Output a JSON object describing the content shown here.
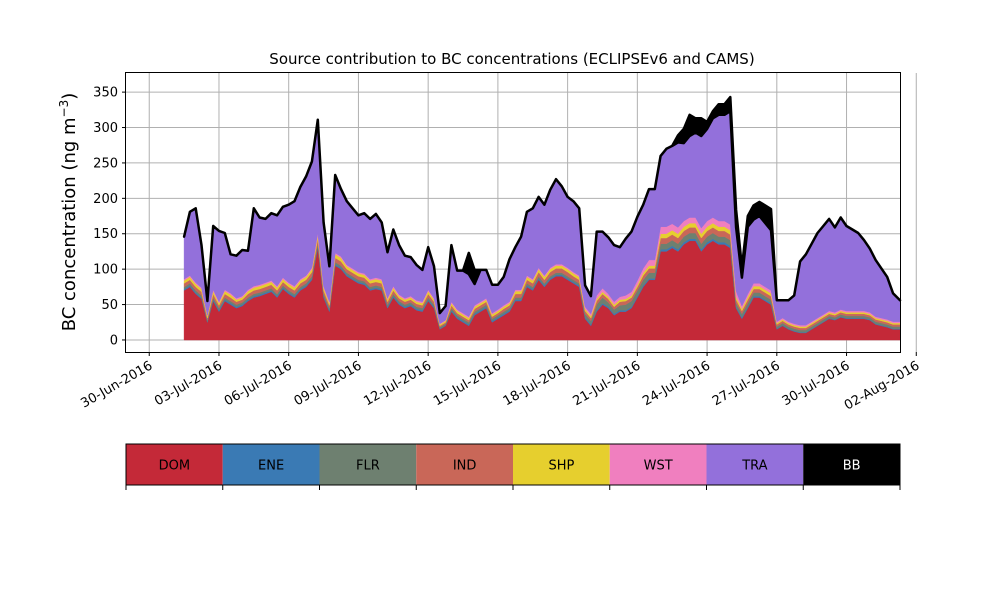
{
  "chart_data": {
    "type": "area",
    "title": "Source contribution to BC concentrations (ECLIPSEv6 and CAMS)",
    "ylabel": "BC concentration (ng m",
    "ylabel_sup": "−3",
    "ylabel_close": ")",
    "xlabel": "",
    "ylim": [
      -17,
      377
    ],
    "xlim": [
      -1,
      32.3
    ],
    "grid": true,
    "legend_placement": "below",
    "yticks": [
      0,
      50,
      100,
      150,
      200,
      250,
      300,
      350
    ],
    "xticks": [
      {
        "x": 0,
        "label": "30-Jun-2016"
      },
      {
        "x": 3,
        "label": "03-Jul-2016"
      },
      {
        "x": 6,
        "label": "06-Jul-2016"
      },
      {
        "x": 9,
        "label": "09-Jul-2016"
      },
      {
        "x": 12,
        "label": "12-Jul-2016"
      },
      {
        "x": 15,
        "label": "15-Jul-2016"
      },
      {
        "x": 18,
        "label": "18-Jul-2016"
      },
      {
        "x": 21,
        "label": "21-Jul-2016"
      },
      {
        "x": 24,
        "label": "24-Jul-2016"
      },
      {
        "x": 27,
        "label": "27-Jul-2016"
      },
      {
        "x": 30,
        "label": "30-Jul-2016"
      },
      {
        "x": 33,
        "label": "02-Aug-2016"
      }
    ],
    "x_unit": "days since 30-Jun-2016",
    "x": [
      1.5,
      1.75,
      2,
      2.25,
      2.5,
      2.75,
      3,
      3.25,
      3.5,
      3.75,
      4,
      4.25,
      4.5,
      4.75,
      5,
      5.25,
      5.5,
      5.75,
      6,
      6.25,
      6.5,
      6.75,
      7,
      7.25,
      7.5,
      7.75,
      8,
      8.25,
      8.5,
      8.75,
      9,
      9.25,
      9.5,
      9.75,
      10,
      10.25,
      10.5,
      10.75,
      11,
      11.25,
      11.5,
      11.75,
      12,
      12.25,
      12.5,
      12.75,
      13,
      13.25,
      13.5,
      13.75,
      14,
      14.25,
      14.5,
      14.75,
      15,
      15.25,
      15.5,
      15.75,
      16,
      16.25,
      16.5,
      16.75,
      17,
      17.25,
      17.5,
      17.75,
      18,
      18.25,
      18.5,
      18.75,
      19,
      19.25,
      19.5,
      19.75,
      20,
      20.25,
      20.5,
      20.75,
      21,
      21.25,
      21.5,
      21.75,
      22,
      22.25,
      22.5,
      22.75,
      23,
      23.25,
      23.5,
      23.75,
      24,
      24.25,
      24.5,
      24.75,
      25,
      25.25,
      25.5,
      25.75,
      26,
      26.25,
      26.5,
      26.75,
      27,
      27.25,
      27.5,
      27.75,
      28,
      28.25,
      28.5,
      28.75,
      29,
      29.25,
      29.5,
      29.75,
      30,
      30.25,
      30.5,
      30.75,
      31,
      31.25,
      31.5,
      31.75,
      32,
      32.3
    ],
    "series": [
      {
        "name": "DOM",
        "color": "#c42938",
        "values": [
          70,
          75,
          65,
          58,
          25,
          55,
          40,
          55,
          50,
          45,
          48,
          55,
          60,
          62,
          65,
          68,
          60,
          72,
          65,
          60,
          70,
          75,
          85,
          130,
          60,
          40,
          105,
          100,
          90,
          85,
          80,
          78,
          70,
          72,
          70,
          45,
          60,
          50,
          45,
          48,
          42,
          40,
          55,
          45,
          15,
          20,
          40,
          30,
          25,
          20,
          35,
          40,
          45,
          25,
          30,
          35,
          40,
          55,
          55,
          75,
          70,
          85,
          75,
          85,
          90,
          90,
          85,
          80,
          75,
          30,
          20,
          40,
          50,
          45,
          35,
          40,
          40,
          45,
          60,
          75,
          85,
          85,
          125,
          125,
          130,
          125,
          135,
          140,
          140,
          125,
          135,
          140,
          135,
          135,
          130,
          45,
          30,
          45,
          60,
          60,
          55,
          50,
          15,
          20,
          15,
          12,
          10,
          10,
          15,
          20,
          25,
          30,
          28,
          32,
          30,
          30,
          30,
          30,
          28,
          22,
          20,
          18,
          15,
          15
        ]
      },
      {
        "name": "ENE",
        "color": "#3a7ab4",
        "values": [
          2,
          2,
          2,
          2,
          1,
          2,
          2,
          2,
          2,
          2,
          2,
          2,
          2,
          2,
          2,
          2,
          2,
          2,
          2,
          2,
          2,
          2,
          2,
          3,
          2,
          2,
          2,
          2,
          2,
          2,
          2,
          2,
          2,
          2,
          2,
          2,
          2,
          2,
          2,
          2,
          2,
          2,
          2,
          2,
          1,
          1,
          2,
          2,
          2,
          2,
          2,
          2,
          2,
          2,
          2,
          2,
          2,
          2,
          2,
          2,
          2,
          2,
          2,
          2,
          2,
          2,
          2,
          2,
          2,
          2,
          2,
          2,
          2,
          2,
          2,
          2,
          2,
          2,
          2,
          2,
          2,
          2,
          3,
          3,
          3,
          3,
          3,
          3,
          3,
          3,
          3,
          3,
          3,
          3,
          3,
          2,
          2,
          2,
          2,
          2,
          2,
          2,
          1,
          1,
          1,
          1,
          1,
          1,
          1,
          1,
          1,
          1,
          1,
          1,
          1,
          1,
          1,
          1,
          1,
          1,
          1,
          1,
          1,
          1
        ]
      },
      {
        "name": "FLR",
        "color": "#6e8070",
        "values": [
          3,
          3,
          3,
          3,
          2,
          3,
          3,
          3,
          3,
          3,
          3,
          3,
          3,
          3,
          3,
          3,
          3,
          3,
          3,
          3,
          3,
          3,
          3,
          4,
          3,
          3,
          3,
          3,
          3,
          3,
          3,
          3,
          3,
          3,
          3,
          3,
          3,
          3,
          3,
          3,
          3,
          3,
          3,
          3,
          2,
          2,
          3,
          3,
          3,
          3,
          3,
          3,
          3,
          3,
          3,
          3,
          3,
          3,
          3,
          3,
          3,
          3,
          3,
          3,
          3,
          3,
          3,
          3,
          3,
          5,
          5,
          8,
          8,
          6,
          6,
          7,
          8,
          8,
          8,
          8,
          8,
          8,
          8,
          8,
          8,
          8,
          8,
          8,
          8,
          8,
          8,
          8,
          8,
          8,
          8,
          5,
          5,
          5,
          5,
          5,
          5,
          5,
          3,
          3,
          3,
          3,
          3,
          3,
          3,
          3,
          3,
          3,
          3,
          3,
          3,
          3,
          3,
          3,
          3,
          3,
          3,
          3,
          3,
          3
        ]
      },
      {
        "name": "IND",
        "color": "#c96758",
        "values": [
          5,
          5,
          5,
          5,
          3,
          5,
          4,
          5,
          5,
          4,
          4,
          5,
          5,
          5,
          5,
          5,
          5,
          5,
          5,
          5,
          5,
          5,
          6,
          6,
          5,
          4,
          6,
          6,
          5,
          5,
          5,
          5,
          5,
          5,
          5,
          4,
          5,
          4,
          4,
          4,
          4,
          4,
          5,
          4,
          2,
          2,
          4,
          3,
          3,
          3,
          4,
          4,
          4,
          3,
          3,
          4,
          4,
          5,
          5,
          5,
          5,
          6,
          5,
          6,
          6,
          6,
          6,
          5,
          5,
          4,
          4,
          5,
          5,
          5,
          4,
          5,
          5,
          5,
          5,
          6,
          6,
          6,
          8,
          8,
          8,
          8,
          8,
          8,
          8,
          8,
          8,
          8,
          8,
          8,
          8,
          5,
          4,
          5,
          5,
          5,
          5,
          5,
          3,
          3,
          3,
          3,
          3,
          3,
          3,
          3,
          3,
          3,
          3,
          3,
          3,
          3,
          3,
          3,
          3,
          3,
          3,
          3,
          3,
          3
        ]
      },
      {
        "name": "SHP",
        "color": "#e6cf2e",
        "values": [
          4,
          4,
          4,
          4,
          3,
          4,
          3,
          4,
          4,
          3,
          3,
          4,
          4,
          4,
          4,
          4,
          4,
          4,
          4,
          4,
          4,
          4,
          4,
          5,
          4,
          3,
          5,
          5,
          4,
          4,
          4,
          4,
          4,
          4,
          4,
          3,
          4,
          3,
          3,
          3,
          3,
          3,
          4,
          3,
          2,
          2,
          3,
          3,
          3,
          3,
          3,
          3,
          3,
          3,
          3,
          3,
          3,
          4,
          4,
          4,
          4,
          4,
          4,
          4,
          4,
          4,
          4,
          4,
          4,
          3,
          3,
          3,
          3,
          3,
          3,
          3,
          3,
          3,
          3,
          4,
          4,
          4,
          6,
          6,
          6,
          6,
          6,
          6,
          6,
          6,
          6,
          6,
          6,
          6,
          6,
          4,
          3,
          4,
          4,
          4,
          4,
          4,
          2,
          2,
          2,
          2,
          2,
          2,
          2,
          2,
          2,
          2,
          2,
          2,
          2,
          2,
          2,
          2,
          2,
          2,
          2,
          2,
          2,
          2
        ]
      },
      {
        "name": "WST",
        "color": "#f07fbf",
        "values": [
          2,
          2,
          2,
          2,
          1,
          2,
          2,
          2,
          2,
          2,
          2,
          2,
          2,
          2,
          2,
          2,
          2,
          2,
          2,
          2,
          2,
          2,
          2,
          3,
          2,
          2,
          2,
          2,
          2,
          2,
          2,
          2,
          2,
          2,
          2,
          2,
          2,
          2,
          2,
          2,
          2,
          2,
          2,
          2,
          1,
          1,
          2,
          2,
          2,
          2,
          2,
          2,
          2,
          2,
          2,
          2,
          2,
          2,
          2,
          2,
          2,
          2,
          2,
          2,
          2,
          2,
          2,
          2,
          2,
          3,
          3,
          5,
          5,
          4,
          4,
          4,
          5,
          5,
          6,
          6,
          8,
          8,
          10,
          10,
          9,
          9,
          8,
          8,
          8,
          8,
          8,
          8,
          8,
          8,
          8,
          8,
          4,
          4,
          4,
          4,
          4,
          4,
          2,
          2,
          2,
          2,
          2,
          2,
          2,
          2,
          2,
          2,
          2,
          2,
          2,
          2,
          2,
          2,
          2,
          2,
          2,
          2,
          2,
          2
        ]
      },
      {
        "name": "TRA",
        "color": "#9370db",
        "values": [
          60,
          90,
          105,
          60,
          20,
          90,
          100,
          80,
          55,
          60,
          65,
          55,
          110,
          95,
          90,
          95,
          100,
          100,
          110,
          120,
          130,
          140,
          150,
          160,
          90,
          50,
          110,
          95,
          90,
          85,
          80,
          85,
          85,
          90,
          80,
          65,
          80,
          70,
          60,
          55,
          50,
          45,
          60,
          45,
          15,
          20,
          80,
          55,
          60,
          60,
          30,
          45,
          40,
          40,
          35,
          40,
          60,
          60,
          75,
          90,
          100,
          100,
          100,
          110,
          120,
          110,
          100,
          100,
          95,
          30,
          25,
          90,
          80,
          80,
          80,
          70,
          80,
          85,
          90,
          90,
          100,
          100,
          100,
          110,
          110,
          120,
          110,
          115,
          120,
          130,
          130,
          140,
          150,
          150,
          160,
          90,
          40,
          95,
          90,
          95,
          90,
          85,
          30,
          25,
          30,
          40,
          90,
          100,
          110,
          120,
          125,
          130,
          120,
          130,
          120,
          115,
          110,
          100,
          90,
          80,
          70,
          60,
          40,
          30
        ]
      },
      {
        "name": "BB",
        "color": "#000000",
        "values": [
          0,
          0,
          0,
          0,
          0,
          0,
          0,
          0,
          0,
          0,
          0,
          0,
          0,
          0,
          0,
          0,
          0,
          0,
          0,
          0,
          0,
          0,
          0,
          0,
          0,
          0,
          0,
          0,
          0,
          0,
          0,
          0,
          0,
          0,
          0,
          0,
          0,
          0,
          0,
          0,
          0,
          0,
          0,
          0,
          0,
          0,
          0,
          0,
          0,
          30,
          20,
          0,
          0,
          0,
          0,
          0,
          0,
          0,
          0,
          0,
          0,
          0,
          0,
          0,
          0,
          0,
          0,
          0,
          0,
          0,
          0,
          0,
          0,
          0,
          0,
          0,
          0,
          0,
          0,
          0,
          0,
          0,
          0,
          0,
          0,
          10,
          20,
          30,
          20,
          25,
          10,
          10,
          15,
          15,
          20,
          25,
          15,
          15,
          20,
          20,
          25,
          30,
          0,
          0,
          0,
          0,
          0,
          0,
          0,
          0,
          0,
          0,
          0,
          0,
          0,
          0,
          0,
          0,
          0,
          0,
          0,
          0,
          0,
          0
        ]
      }
    ]
  }
}
